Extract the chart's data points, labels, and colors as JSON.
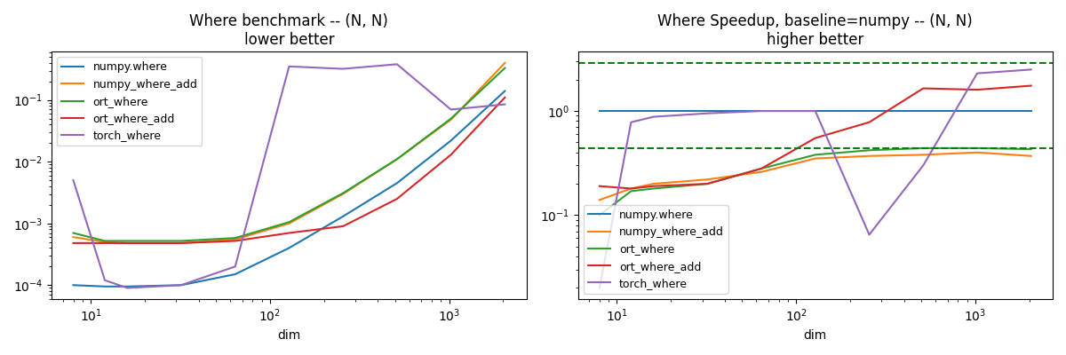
{
  "dims": [
    8,
    12,
    16,
    32,
    64,
    128,
    256,
    512,
    1024,
    2048
  ],
  "benchmark": {
    "numpy.where": [
      0.0001,
      9.5e-05,
      9.5e-05,
      0.0001,
      0.00015,
      0.0004,
      0.0013,
      0.0045,
      0.022,
      0.14
    ],
    "numpy_where_add": [
      0.0006,
      0.0005,
      0.00048,
      0.00048,
      0.00055,
      0.001,
      0.003,
      0.011,
      0.048,
      0.4
    ],
    "ort_where": [
      0.0007,
      0.00052,
      0.00052,
      0.00052,
      0.00058,
      0.00105,
      0.0031,
      0.011,
      0.05,
      0.33
    ],
    "ort_where_add": [
      0.00048,
      0.00048,
      0.00048,
      0.00048,
      0.00052,
      0.0007,
      0.0009,
      0.0025,
      0.013,
      0.11
    ],
    "torch_where": [
      0.005,
      0.00012,
      9e-05,
      0.0001,
      0.0002,
      0.35,
      0.32,
      0.38,
      0.07,
      0.085
    ]
  },
  "speedup": {
    "numpy.where": [
      1.0,
      1.0,
      1.0,
      1.0,
      1.0,
      1.0,
      1.0,
      1.0,
      1.0,
      1.0
    ],
    "numpy_where_add": [
      0.14,
      0.18,
      0.2,
      0.22,
      0.26,
      0.35,
      0.37,
      0.38,
      0.4,
      0.37
    ],
    "ort_where": [
      0.1,
      0.17,
      0.18,
      0.2,
      0.28,
      0.38,
      0.42,
      0.44,
      0.44,
      0.43
    ],
    "ort_where_add": [
      0.19,
      0.18,
      0.19,
      0.2,
      0.28,
      0.55,
      0.78,
      1.65,
      1.6,
      1.75
    ],
    "torch_where": [
      0.02,
      0.78,
      0.88,
      0.95,
      1.0,
      1.0,
      0.065,
      0.3,
      2.3,
      2.5
    ]
  },
  "speedup_hlines": {
    "green_upper": 2.9,
    "green_lower": 0.44
  },
  "colors": {
    "numpy.where": "#1f77b4",
    "numpy_where_add": "#ff7f0e",
    "ort_where": "#2ca02c",
    "ort_where_add": "#d62728",
    "torch_where": "#9467bd"
  },
  "title1": "Where benchmark -- (N, N)\nlower better",
  "title2": "Where Speedup, baseline=numpy -- (N, N)\nhigher better",
  "xlabel": "dim"
}
